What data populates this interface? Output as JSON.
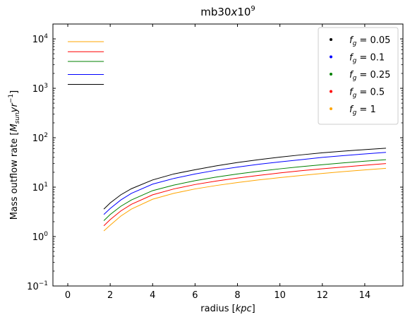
{
  "chart_data": {
    "type": "line",
    "title_base": "mb30",
    "title_var": "x",
    "title_num": "10",
    "title_exp": "9",
    "xlabel": "radius [",
    "xlabel_var": "kpc",
    "xlabel_end": "]",
    "ylabel": "Mass outflow rate [",
    "ylabel_var": "M",
    "ylabel_sub": "sun",
    "ylabel_var2": "yr",
    "ylabel_exp": "−1",
    "ylabel_end": "]",
    "xlim": [
      -0.7,
      15.8
    ],
    "ylim": [
      0.1,
      20000
    ],
    "yscale": "log",
    "x_ticks": [
      0,
      2,
      4,
      6,
      8,
      10,
      12,
      14
    ],
    "x_tick_labels": [
      "0",
      "2",
      "4",
      "6",
      "8",
      "10",
      "12",
      "14"
    ],
    "y_ticks": [
      0.1,
      1,
      10,
      100,
      1000,
      10000
    ],
    "y_tick_bases": [
      "10",
      "10",
      "10",
      "10",
      "10",
      "10"
    ],
    "y_tick_exps": [
      "−1",
      "0",
      "1",
      "2",
      "3",
      "4"
    ],
    "grid": false,
    "legend_position": "top-right",
    "legend_var": "f",
    "legend_sub": "g",
    "series": [
      {
        "name": "0.05",
        "color": "#000000",
        "marker_y": 1200,
        "x": [
          1.7,
          2,
          2.5,
          3,
          4,
          5,
          6,
          7,
          8,
          9,
          10,
          11,
          12,
          13,
          14,
          15
        ],
        "y": [
          3.6,
          4.8,
          7.0,
          9.3,
          14.0,
          18.5,
          22.5,
          27.0,
          31.5,
          36.0,
          40.5,
          45.0,
          49.5,
          53.5,
          57.5,
          61.5
        ]
      },
      {
        "name": "0.1",
        "color": "#0000ff",
        "marker_y": 1900,
        "x": [
          1.7,
          2,
          2.5,
          3,
          4,
          5,
          6,
          7,
          8,
          9,
          10,
          11,
          12,
          13,
          14,
          15
        ],
        "y": [
          2.8,
          3.7,
          5.5,
          7.5,
          11.5,
          15.0,
          18.5,
          22.0,
          25.5,
          29.0,
          32.5,
          36.0,
          40.0,
          43.5,
          47.0,
          50.5
        ]
      },
      {
        "name": "0.25",
        "color": "#008000",
        "marker_y": 3500,
        "x": [
          1.7,
          2,
          2.5,
          3,
          4,
          5,
          6,
          7,
          8,
          9,
          10,
          11,
          12,
          13,
          14,
          15
        ],
        "y": [
          2.1,
          2.8,
          4.1,
          5.5,
          8.5,
          11.0,
          13.5,
          16.0,
          18.5,
          21.0,
          23.5,
          26.0,
          28.5,
          31.0,
          33.5,
          36.0
        ]
      },
      {
        "name": "0.5",
        "color": "#ff0000",
        "marker_y": 5500,
        "x": [
          1.7,
          2,
          2.5,
          3,
          4,
          5,
          6,
          7,
          8,
          9,
          10,
          11,
          12,
          13,
          14,
          15
        ],
        "y": [
          1.65,
          2.2,
          3.3,
          4.5,
          7.0,
          9.2,
          11.3,
          13.3,
          15.3,
          17.3,
          19.4,
          21.5,
          23.5,
          25.6,
          27.8,
          30.0
        ]
      },
      {
        "name": "1",
        "color": "#ffa500",
        "marker_y": 8800,
        "x": [
          1.7,
          2,
          2.5,
          3,
          4,
          5,
          6,
          7,
          8,
          9,
          10,
          11,
          12,
          13,
          14,
          15
        ],
        "y": [
          1.3,
          1.7,
          2.6,
          3.6,
          5.7,
          7.5,
          9.2,
          10.8,
          12.4,
          14.0,
          15.6,
          17.2,
          18.9,
          20.6,
          22.3,
          24.0
        ]
      }
    ],
    "legend_order": [
      0,
      1,
      2,
      3,
      4
    ],
    "marker_line_x": [
      0,
      1.7
    ]
  }
}
